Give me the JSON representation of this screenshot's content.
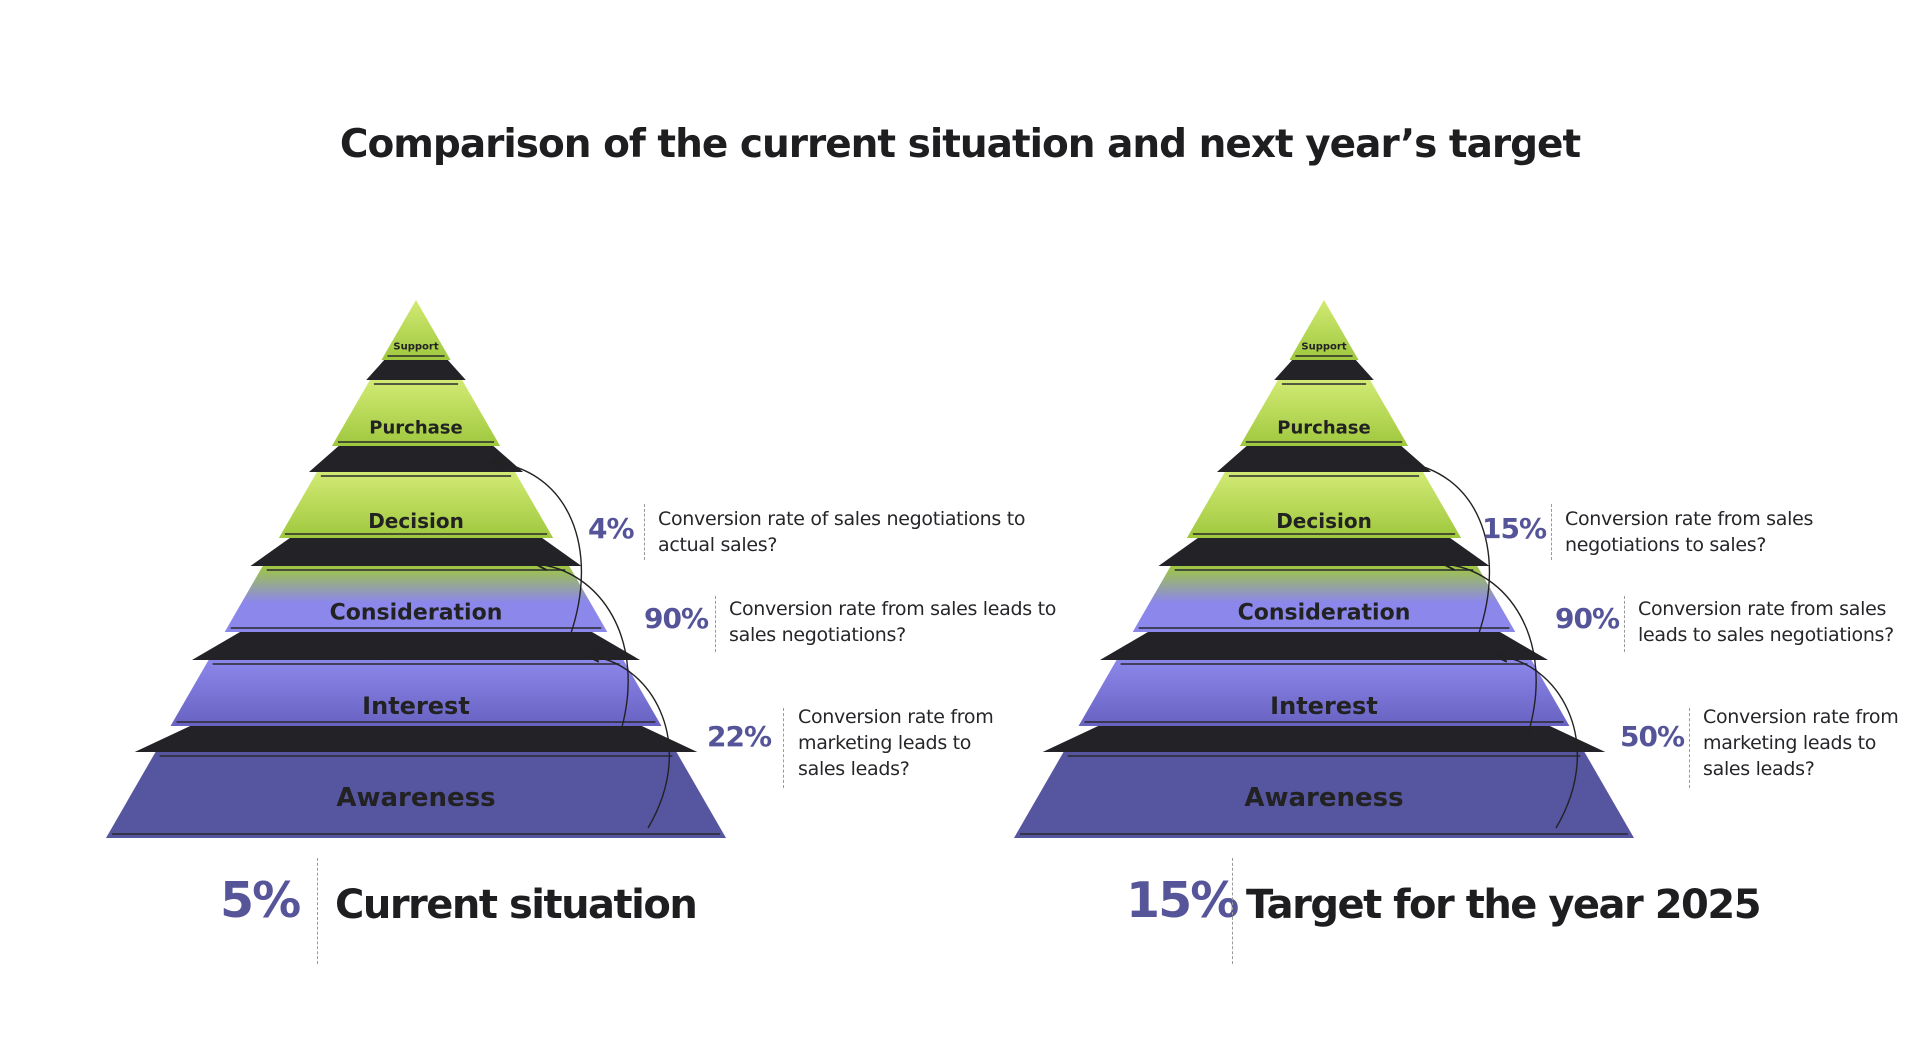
{
  "title": "Comparison of the current situation and next year’s target",
  "colors": {
    "green_light": "#d2ea74",
    "green": "#9fc83e",
    "blue_light": "#8c87ea",
    "blue": "#6862c2",
    "navy": "#56559f",
    "dark_band": "#232227",
    "accent_text": "#555499"
  },
  "panels": [
    {
      "layers": [
        "Support",
        "Purchase",
        "Decision",
        "Consideration",
        "Interest",
        "Awareness"
      ],
      "conversions": [
        {
          "rate": "4%",
          "question": "Conversion rate of sales negotiations to actual sales?"
        },
        {
          "rate": "90%",
          "question": "Conversion rate from sales leads to sales negotiations?"
        },
        {
          "rate": "22%",
          "question": "Conversion rate from marketing leads to sales leads?"
        }
      ],
      "overall_rate": "5%",
      "caption": "Current situation"
    },
    {
      "layers": [
        "Support",
        "Purchase",
        "Decision",
        "Consideration",
        "Interest",
        "Awareness"
      ],
      "conversions": [
        {
          "rate": "15%",
          "question": "Conversion rate from sales negotiations to sales?"
        },
        {
          "rate": "90%",
          "question": "Conversion rate from sales leads to sales negotiations?"
        },
        {
          "rate": "50%",
          "question": "Conversion rate from marketing leads to sales leads?"
        }
      ],
      "overall_rate": "15%",
      "caption": "Target for the year 2025"
    }
  ]
}
